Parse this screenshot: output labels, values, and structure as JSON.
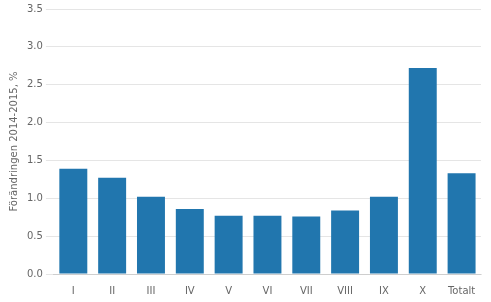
{
  "chart_data": {
    "type": "bar",
    "categories": [
      "I",
      "II",
      "III",
      "IV",
      "V",
      "VI",
      "VII",
      "VIII",
      "IX",
      "X",
      "Totalt"
    ],
    "values": [
      1.39,
      1.27,
      1.02,
      0.86,
      0.77,
      0.77,
      0.76,
      0.84,
      1.02,
      2.72,
      1.33
    ],
    "color": "#2176ae",
    "ylabel": "Förändringen 2014-2015, %",
    "ylim": [
      0,
      3.5
    ],
    "yticks": [
      {
        "value": 0,
        "label": "0.0"
      },
      0.5,
      {
        "value": 1,
        "label": "1.0"
      },
      1.5,
      {
        "value": 2,
        "label": "2.0"
      },
      2.5,
      {
        "value": 3,
        "label": "3.0"
      },
      3.5
    ],
    "grid": true
  }
}
